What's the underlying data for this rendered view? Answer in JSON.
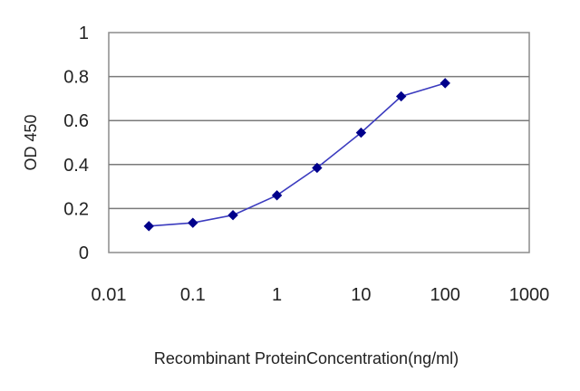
{
  "chart_data": {
    "type": "line",
    "title": "",
    "xlabel": "Recombinant ProteinConcentration(ng/ml)",
    "ylabel": "OD 450",
    "x_scale": "log",
    "xlim": [
      0.01,
      1000
    ],
    "ylim": [
      0,
      1
    ],
    "x_ticks": [
      0.01,
      0.1,
      1,
      10,
      100,
      1000
    ],
    "x_tick_labels": [
      "0.01",
      "0.1",
      "1",
      "10",
      "100",
      "1000"
    ],
    "y_ticks": [
      0,
      0.2,
      0.4,
      0.6,
      0.8,
      1
    ],
    "y_tick_labels": [
      "0",
      "0.2",
      "0.4",
      "0.6",
      "0.8",
      "1"
    ],
    "grid": "horizontal",
    "legend": "none",
    "series": [
      {
        "x": [
          0.03,
          0.1,
          0.3,
          1,
          3,
          10,
          30,
          100
        ],
        "y": [
          0.12,
          0.135,
          0.17,
          0.26,
          0.385,
          0.545,
          0.71,
          0.77
        ],
        "color": "#00008b",
        "marker": "diamond"
      }
    ]
  }
}
